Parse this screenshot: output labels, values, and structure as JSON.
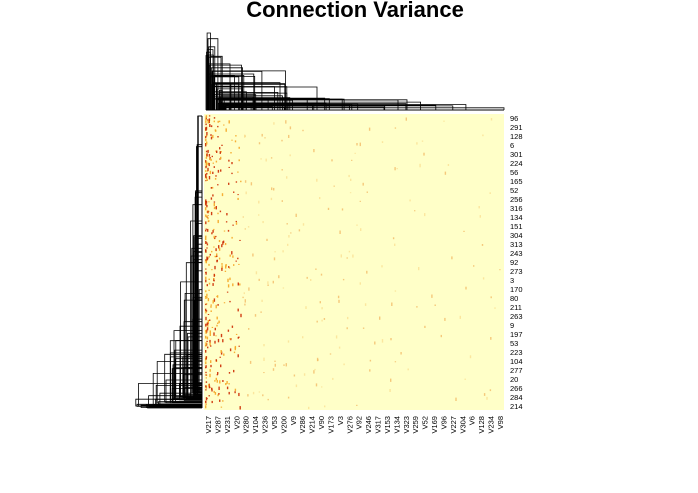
{
  "chart_data": {
    "type": "heatmap",
    "title": "Connection Variance",
    "xlabel": "",
    "ylabel": "",
    "dendrograms": {
      "rows": "left",
      "columns": "top"
    },
    "colors": {
      "low": "#ffffc8",
      "mid": "#f5a623",
      "high": "#cc2a00",
      "dendrogram": "#000000"
    },
    "column_labels": [
      "V217",
      "V287",
      "V231",
      "V20",
      "V280",
      "V104",
      "V236",
      "V53",
      "V200",
      "V9",
      "V286",
      "V214",
      "V90",
      "V173",
      "V3",
      "V276",
      "V92",
      "V246",
      "V317",
      "V153",
      "V134",
      "V323",
      "V259",
      "V52",
      "V169",
      "V96",
      "V227",
      "V304",
      "V6",
      "V128",
      "V234",
      "V98"
    ],
    "row_labels": [
      "96",
      "291",
      "128",
      "6",
      "301",
      "224",
      "56",
      "165",
      "52",
      "256",
      "316",
      "134",
      "151",
      "304",
      "313",
      "243",
      "92",
      "273",
      "3",
      "170",
      "80",
      "211",
      "263",
      "9",
      "197",
      "53",
      "223",
      "104",
      "277",
      "20",
      "266",
      "284",
      "214"
    ]
  }
}
